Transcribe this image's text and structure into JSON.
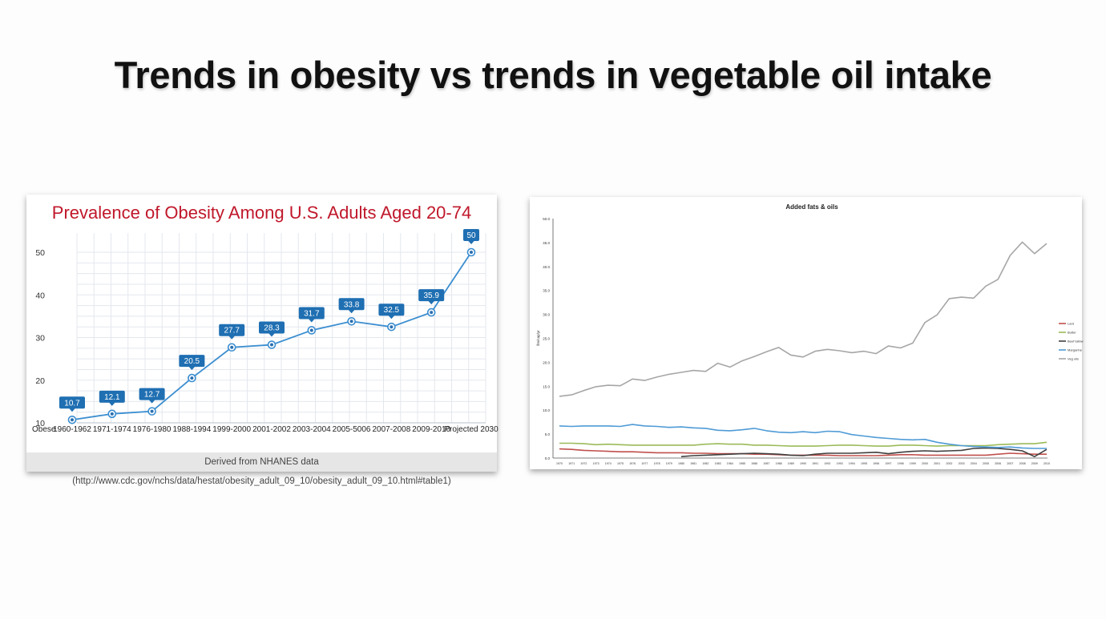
{
  "slide": {
    "title": "Trends in obesity vs trends in vegetable oil intake"
  },
  "colors": {
    "obesity_title": "#c0182b",
    "obesity_line": "#3b8ed0",
    "label_box": "#1f6fb2"
  },
  "chart_data": [
    {
      "type": "line",
      "title": "Prevalence of Obesity Among U.S. Adults Aged 20-74",
      "footer": "Derived from NHANES data (http://www.cdc.gov/nchs/data/hestat/obesity_adult_09_10/obesity_adult_09_10.html#table1)",
      "first_category_label": "Obese",
      "categories": [
        "1960-1962",
        "1971-1974",
        "1976-1980",
        "1988-1994",
        "1999-2000",
        "2001-2002",
        "2003-2004",
        "2005-5006",
        "2007-2008",
        "2009-2010",
        "Projected 2030"
      ],
      "values": [
        10.7,
        12.1,
        12.7,
        20.5,
        27.7,
        28.3,
        31.7,
        33.8,
        32.5,
        35.9,
        50
      ],
      "ylim": [
        10,
        50
      ],
      "yticks": [
        10,
        20,
        30,
        40,
        50
      ],
      "grid": true
    },
    {
      "type": "line",
      "title": "Added fats & oils",
      "ylabel": "lbs/cap/yr",
      "ylim": [
        0,
        50
      ],
      "yticks": [
        "0.0",
        "5.0",
        "10.0",
        "15.0",
        "20.0",
        "25.0",
        "30.0",
        "35.0",
        "40.0",
        "45.0",
        "50.0"
      ],
      "x": [
        1970,
        1971,
        1972,
        1973,
        1974,
        1975,
        1976,
        1977,
        1978,
        1979,
        1980,
        1981,
        1982,
        1983,
        1984,
        1985,
        1986,
        1987,
        1988,
        1989,
        1990,
        1991,
        1992,
        1993,
        1994,
        1995,
        1996,
        1997,
        1998,
        1999,
        2000,
        2001,
        2002,
        2003,
        2004,
        2005,
        2006,
        2007,
        2008,
        2009,
        2010
      ],
      "legend_position": "right",
      "series": [
        {
          "name": "Lard",
          "color": "#c0504d",
          "values": [
            1.9,
            1.8,
            1.6,
            1.5,
            1.4,
            1.3,
            1.3,
            1.2,
            1.1,
            1.1,
            1.1,
            1.0,
            1.0,
            0.9,
            0.9,
            0.9,
            0.8,
            0.8,
            0.7,
            0.6,
            0.6,
            0.6,
            0.6,
            0.5,
            0.5,
            0.5,
            0.5,
            0.6,
            0.7,
            0.7,
            0.6,
            0.6,
            0.6,
            0.6,
            0.6,
            0.6,
            0.8,
            1.0,
            0.9,
            0.8,
            0.8
          ]
        },
        {
          "name": "Butter",
          "color": "#9bbb59",
          "values": [
            3.1,
            3.1,
            3.0,
            2.8,
            2.9,
            2.8,
            2.7,
            2.7,
            2.7,
            2.7,
            2.7,
            2.7,
            2.9,
            3.0,
            2.9,
            2.9,
            2.7,
            2.7,
            2.6,
            2.5,
            2.5,
            2.5,
            2.6,
            2.7,
            2.7,
            2.6,
            2.5,
            2.5,
            2.7,
            2.7,
            2.6,
            2.5,
            2.6,
            2.6,
            2.6,
            2.6,
            2.8,
            2.9,
            3.0,
            3.0,
            3.3
          ]
        },
        {
          "name": "Beef tallow",
          "color": "#404040",
          "values": [
            null,
            null,
            null,
            null,
            null,
            null,
            null,
            null,
            null,
            null,
            0.3,
            0.5,
            0.6,
            0.7,
            0.8,
            0.9,
            1.0,
            0.9,
            0.8,
            0.6,
            0.5,
            0.8,
            1.0,
            1.0,
            1.0,
            1.1,
            1.2,
            0.9,
            1.2,
            1.4,
            1.5,
            1.4,
            1.5,
            1.6,
            2.0,
            2.1,
            2.0,
            1.8,
            1.5,
            0.3,
            1.8
          ]
        },
        {
          "name": "Margarine",
          "color": "#4f9bd6",
          "values": [
            6.7,
            6.6,
            6.7,
            6.7,
            6.7,
            6.6,
            7.0,
            6.7,
            6.6,
            6.4,
            6.5,
            6.3,
            6.2,
            5.8,
            5.7,
            5.9,
            6.2,
            5.7,
            5.4,
            5.3,
            5.5,
            5.3,
            5.6,
            5.5,
            4.9,
            4.6,
            4.3,
            4.1,
            3.9,
            3.8,
            3.9,
            3.3,
            2.9,
            2.6,
            2.4,
            2.3,
            2.2,
            2.3,
            2.1,
            2.0,
            2.0
          ]
        },
        {
          "name": "Veg oils",
          "color": "#a6a6a6",
          "values": [
            12.9,
            13.2,
            14.1,
            14.9,
            15.2,
            15.1,
            16.5,
            16.2,
            16.9,
            17.5,
            17.9,
            18.3,
            18.1,
            19.8,
            19.0,
            20.3,
            21.2,
            22.2,
            23.1,
            21.5,
            21.1,
            22.3,
            22.7,
            22.4,
            22.0,
            22.3,
            21.8,
            23.4,
            23.0,
            24.0,
            28.3,
            29.9,
            33.3,
            33.6,
            33.4,
            35.9,
            37.3,
            42.3,
            45.1,
            42.7,
            44.8
          ]
        }
      ]
    }
  ]
}
